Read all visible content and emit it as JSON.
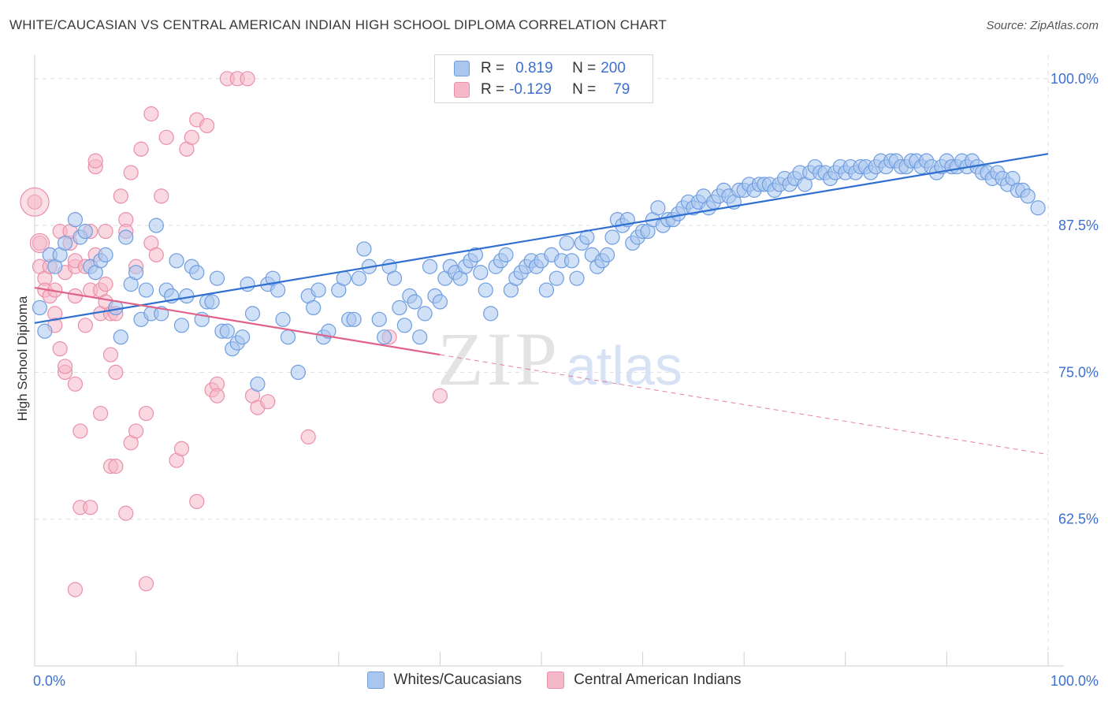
{
  "header": {
    "title": "WHITE/CAUCASIAN VS CENTRAL AMERICAN INDIAN HIGH SCHOOL DIPLOMA CORRELATION CHART",
    "source": "Source: ZipAtlas.com"
  },
  "watermark": {
    "zip": "ZIP",
    "atlas": "atlas"
  },
  "legend": {
    "series1": {
      "r_label": "R =",
      "r_value": "0.819",
      "n_label": "N =",
      "n_value": "200"
    },
    "series2": {
      "r_label": "R =",
      "r_value": "-0.129",
      "n_label": "N =",
      "n_value": "79"
    }
  },
  "bottom_legend": {
    "series1": "Whites/Caucasians",
    "series2": "Central American Indians"
  },
  "colors": {
    "blue_fill": "#a9c6ee",
    "blue_stroke": "#6f9de0",
    "blue_line": "#2f6fd1",
    "pink_fill": "#f5b8c9",
    "pink_stroke": "#ea8faa",
    "pink_line": "#e0628b",
    "tick_text": "#3d6fd0",
    "grid": "#dedede"
  },
  "chart_data": {
    "type": "scatter",
    "title": "WHITE/CAUCASIAN VS CENTRAL AMERICAN INDIAN HIGH SCHOOL DIPLOMA CORRELATION CHART",
    "xlabel": "",
    "ylabel": "High School Diploma",
    "xlim": [
      0,
      100
    ],
    "ylim": [
      50,
      102
    ],
    "x_tick_labels": [
      "0.0%",
      "100.0%"
    ],
    "y_ticks": [
      62.5,
      75.0,
      87.5,
      100.0
    ],
    "y_tick_labels": [
      "62.5%",
      "75.0%",
      "87.5%",
      "100.0%"
    ],
    "grid": true,
    "legend_position": "top-center",
    "series": [
      {
        "name": "Whites/Caucasians",
        "r": 0.819,
        "n": 200,
        "trend": {
          "x": [
            0,
            100
          ],
          "y": [
            79.2,
            93.6
          ]
        },
        "points": [
          [
            0.5,
            80.5
          ],
          [
            1,
            78.5
          ],
          [
            1.5,
            85
          ],
          [
            2,
            84
          ],
          [
            2.5,
            85
          ],
          [
            3,
            86
          ],
          [
            4,
            88
          ],
          [
            4.5,
            86.5
          ],
          [
            5,
            87
          ],
          [
            5.5,
            84
          ],
          [
            6,
            83.5
          ],
          [
            6.5,
            84.5
          ],
          [
            7,
            85
          ],
          [
            8,
            80.5
          ],
          [
            8.5,
            78
          ],
          [
            9,
            86.5
          ],
          [
            9.5,
            82.5
          ],
          [
            10,
            83.5
          ],
          [
            10.5,
            79.5
          ],
          [
            11,
            82
          ],
          [
            11.5,
            80
          ],
          [
            12,
            87.5
          ],
          [
            12.5,
            80
          ],
          [
            13,
            82
          ],
          [
            13.5,
            81.5
          ],
          [
            14,
            84.5
          ],
          [
            14.5,
            79
          ],
          [
            15,
            81.5
          ],
          [
            15.5,
            84
          ],
          [
            16,
            83.5
          ],
          [
            16.5,
            79.5
          ],
          [
            17,
            81
          ],
          [
            17.5,
            81
          ],
          [
            18,
            83
          ],
          [
            18.5,
            78.5
          ],
          [
            19,
            78.5
          ],
          [
            19.5,
            77
          ],
          [
            20,
            77.5
          ],
          [
            20.5,
            78
          ],
          [
            21,
            82.5
          ],
          [
            21.5,
            80
          ],
          [
            22,
            74
          ],
          [
            23,
            82.5
          ],
          [
            23.5,
            83
          ],
          [
            24,
            82
          ],
          [
            24.5,
            79.5
          ],
          [
            25,
            78
          ],
          [
            26,
            75
          ],
          [
            27,
            81.5
          ],
          [
            27.5,
            80.5
          ],
          [
            28,
            82
          ],
          [
            28.5,
            78
          ],
          [
            29,
            78.5
          ],
          [
            30,
            82
          ],
          [
            30.5,
            83
          ],
          [
            31,
            79.5
          ],
          [
            31.5,
            79.5
          ],
          [
            32,
            83
          ],
          [
            32.5,
            85.5
          ],
          [
            33,
            84
          ],
          [
            34,
            79.5
          ],
          [
            34.5,
            78
          ],
          [
            35,
            84
          ],
          [
            35.5,
            83
          ],
          [
            36,
            80.5
          ],
          [
            36.5,
            79
          ],
          [
            37,
            81.5
          ],
          [
            37.5,
            81
          ],
          [
            38,
            78
          ],
          [
            38.5,
            80
          ],
          [
            39,
            84
          ],
          [
            39.5,
            81.5
          ],
          [
            40,
            81
          ],
          [
            40.5,
            83
          ],
          [
            41,
            84
          ],
          [
            41.5,
            83.5
          ],
          [
            42,
            83
          ],
          [
            42.5,
            84
          ],
          [
            43,
            84.5
          ],
          [
            43.5,
            85
          ],
          [
            44,
            83.5
          ],
          [
            44.5,
            82
          ],
          [
            45,
            80
          ],
          [
            45.5,
            84
          ],
          [
            46,
            84.5
          ],
          [
            46.5,
            85
          ],
          [
            47,
            82
          ],
          [
            47.5,
            83
          ],
          [
            48,
            83.5
          ],
          [
            48.5,
            84
          ],
          [
            49,
            84.5
          ],
          [
            49.5,
            84
          ],
          [
            50,
            84.5
          ],
          [
            50.5,
            82
          ],
          [
            51,
            85
          ],
          [
            51.5,
            83
          ],
          [
            52,
            84.5
          ],
          [
            52.5,
            86
          ],
          [
            53,
            84.5
          ],
          [
            53.5,
            83
          ],
          [
            54,
            86
          ],
          [
            54.5,
            86.5
          ],
          [
            55,
            85
          ],
          [
            55.5,
            84
          ],
          [
            56,
            84.5
          ],
          [
            56.5,
            85
          ],
          [
            57,
            86.5
          ],
          [
            57.5,
            88
          ],
          [
            58,
            87.5
          ],
          [
            58.5,
            88
          ],
          [
            59,
            86
          ],
          [
            59.5,
            86.5
          ],
          [
            60,
            87
          ],
          [
            60.5,
            87
          ],
          [
            61,
            88
          ],
          [
            61.5,
            89
          ],
          [
            62,
            87.5
          ],
          [
            62.5,
            88
          ],
          [
            63,
            88
          ],
          [
            63.5,
            88.5
          ],
          [
            64,
            89
          ],
          [
            64.5,
            89.5
          ],
          [
            65,
            89
          ],
          [
            65.5,
            89.5
          ],
          [
            66,
            90
          ],
          [
            66.5,
            89
          ],
          [
            67,
            89.5
          ],
          [
            67.5,
            90
          ],
          [
            68,
            90.5
          ],
          [
            68.5,
            90
          ],
          [
            69,
            89.5
          ],
          [
            69.5,
            90.5
          ],
          [
            70,
            90.5
          ],
          [
            70.5,
            91
          ],
          [
            71,
            90.5
          ],
          [
            71.5,
            91
          ],
          [
            72,
            91
          ],
          [
            72.5,
            91
          ],
          [
            73,
            90.5
          ],
          [
            73.5,
            91
          ],
          [
            74,
            91.5
          ],
          [
            74.5,
            91
          ],
          [
            75,
            91.5
          ],
          [
            75.5,
            92
          ],
          [
            76,
            91
          ],
          [
            76.5,
            92
          ],
          [
            77,
            92.5
          ],
          [
            77.5,
            92
          ],
          [
            78,
            92
          ],
          [
            78.5,
            91.5
          ],
          [
            79,
            92
          ],
          [
            79.5,
            92.5
          ],
          [
            80,
            92
          ],
          [
            80.5,
            92.5
          ],
          [
            81,
            92
          ],
          [
            81.5,
            92.5
          ],
          [
            82,
            92.5
          ],
          [
            82.5,
            92
          ],
          [
            83,
            92.5
          ],
          [
            83.5,
            93
          ],
          [
            84,
            92.5
          ],
          [
            84.5,
            93
          ],
          [
            85,
            93
          ],
          [
            85.5,
            92.5
          ],
          [
            86,
            92.5
          ],
          [
            86.5,
            93
          ],
          [
            87,
            93
          ],
          [
            87.5,
            92.5
          ],
          [
            88,
            93
          ],
          [
            88.5,
            92.5
          ],
          [
            89,
            92
          ],
          [
            89.5,
            92.5
          ],
          [
            90,
            93
          ],
          [
            90.5,
            92.5
          ],
          [
            91,
            92.5
          ],
          [
            91.5,
            93
          ],
          [
            92,
            92.5
          ],
          [
            92.5,
            93
          ],
          [
            93,
            92.5
          ],
          [
            93.5,
            92
          ],
          [
            94,
            92
          ],
          [
            94.5,
            91.5
          ],
          [
            95,
            92
          ],
          [
            95.5,
            91.5
          ],
          [
            96,
            91
          ],
          [
            96.5,
            91.5
          ],
          [
            97,
            90.5
          ],
          [
            97.5,
            90.5
          ],
          [
            98,
            90
          ],
          [
            99,
            89
          ]
        ]
      },
      {
        "name": "Central American Indians",
        "r": -0.129,
        "n": 79,
        "trend": {
          "x": [
            0,
            40,
            100
          ],
          "y": [
            82.2,
            76.5,
            68.0
          ]
        },
        "points": [
          [
            0,
            89.5
          ],
          [
            0.5,
            86
          ],
          [
            0.5,
            84
          ],
          [
            1,
            83
          ],
          [
            1,
            82
          ],
          [
            1.5,
            84
          ],
          [
            1.5,
            81.5
          ],
          [
            2,
            82
          ],
          [
            2,
            80
          ],
          [
            2,
            79
          ],
          [
            2.5,
            77
          ],
          [
            2.5,
            87
          ],
          [
            3,
            83.5
          ],
          [
            3,
            75
          ],
          [
            3,
            75.5
          ],
          [
            3.5,
            86
          ],
          [
            3.5,
            87
          ],
          [
            4,
            84
          ],
          [
            4,
            84.5
          ],
          [
            4,
            81.5
          ],
          [
            4,
            74
          ],
          [
            4,
            56.5
          ],
          [
            4.5,
            70
          ],
          [
            4.5,
            63.5
          ],
          [
            5,
            79
          ],
          [
            5,
            84
          ],
          [
            5.5,
            87
          ],
          [
            5.5,
            82
          ],
          [
            5.5,
            63.5
          ],
          [
            6,
            85
          ],
          [
            6,
            92.5
          ],
          [
            6,
            93
          ],
          [
            6.5,
            82
          ],
          [
            6.5,
            80
          ],
          [
            6.5,
            71.5
          ],
          [
            7,
            81
          ],
          [
            7,
            87
          ],
          [
            7,
            82.5
          ],
          [
            7.5,
            80
          ],
          [
            7.5,
            76.5
          ],
          [
            7.5,
            67
          ],
          [
            8,
            80
          ],
          [
            8,
            75
          ],
          [
            8,
            67
          ],
          [
            8.5,
            90
          ],
          [
            9,
            88
          ],
          [
            9,
            87
          ],
          [
            9,
            63
          ],
          [
            9.5,
            92
          ],
          [
            9.5,
            69
          ],
          [
            10,
            84
          ],
          [
            10,
            70
          ],
          [
            10.5,
            94
          ],
          [
            11,
            71.5
          ],
          [
            11,
            57
          ],
          [
            11.5,
            86
          ],
          [
            11.5,
            97
          ],
          [
            12,
            85
          ],
          [
            12.5,
            90
          ],
          [
            13,
            95
          ],
          [
            14,
            67.5
          ],
          [
            14.5,
            68.5
          ],
          [
            15,
            94
          ],
          [
            15.5,
            95
          ],
          [
            16,
            96.5
          ],
          [
            16,
            64
          ],
          [
            17,
            96
          ],
          [
            17.5,
            73.5
          ],
          [
            18,
            74
          ],
          [
            18,
            73
          ],
          [
            19,
            100
          ],
          [
            20,
            100
          ],
          [
            21,
            100
          ],
          [
            21.5,
            73
          ],
          [
            22,
            72
          ],
          [
            23,
            72.5
          ],
          [
            27,
            69.5
          ],
          [
            35,
            78
          ],
          [
            40,
            73
          ]
        ]
      }
    ]
  }
}
